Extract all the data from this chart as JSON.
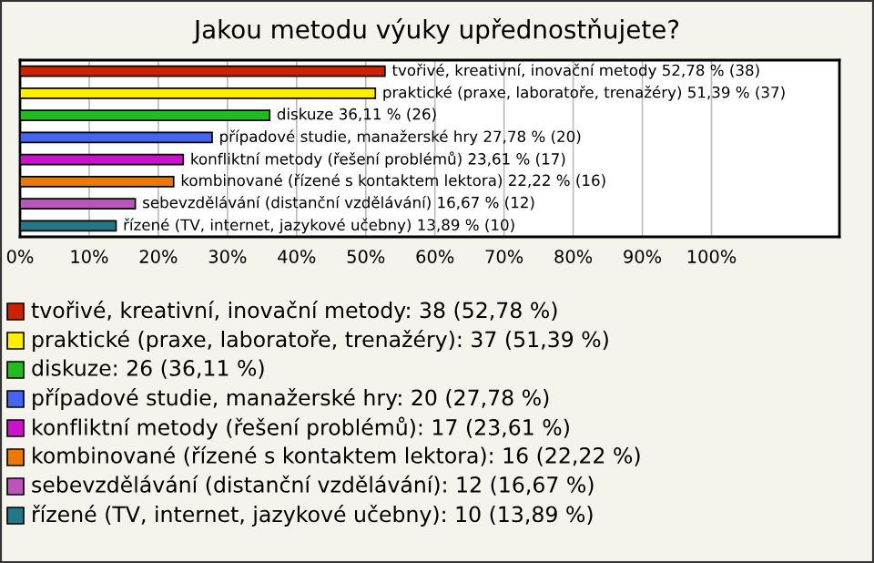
{
  "chart_data": {
    "type": "bar",
    "orientation": "horizontal",
    "title": "Jakou metodu výuky upřednostňujete?",
    "categories": [
      null,
      null,
      null,
      null,
      null,
      null,
      null,
      null
    ],
    "values": [
      52.78,
      51.39,
      36.11,
      27.78,
      23.61,
      22.22,
      16.67,
      13.89
    ],
    "colors": [
      "#cc2200",
      "#ffee00",
      "#22bb22",
      "#4466ee",
      "#cc11cc",
      "#ee7700",
      "#bb55bb",
      "#227788"
    ],
    "value_labels": [
      "tvořivé, kreativní, inovační metody 52,78 % (38)",
      "praktické (praxe, laboratoře, trenažéry) 51,39 % (37)",
      "diskuze 36,11 % (26)",
      "případové studie, manažerské hry 27,78 % (20)",
      "konfliktní metody (řešení problémů) 23,61 % (17)",
      "kombinované (řízené s kontaktem lektora) 22,22 % (16)",
      "sebevzdělávání (distanční vzdělávání) 16,67 % (12)",
      "řízené (TV, internet, jazykové učebny) 13,89 % (10)"
    ],
    "xlim": [
      0,
      118.5
    ],
    "xticks": [
      {
        "value": 0,
        "label": "0%"
      },
      {
        "value": 10,
        "label": "10%"
      },
      {
        "value": 20,
        "label": "20%"
      },
      {
        "value": 30,
        "label": "30%"
      },
      {
        "value": 40,
        "label": "40%"
      },
      {
        "value": 50,
        "label": "50%"
      },
      {
        "value": 60,
        "label": "60%"
      },
      {
        "value": 70,
        "label": "70%"
      },
      {
        "value": 80,
        "label": "80%"
      },
      {
        "value": 90,
        "label": "90%"
      },
      {
        "value": 100,
        "label": "100%"
      }
    ],
    "grid": "x",
    "annotations": [
      "tvořivé, kreativní, inovační metody: 38 (52,78 %)",
      "praktické (praxe, laboratoře, trenažéry): 37 (51,39 %)",
      "diskuze: 26 (36,11 %)",
      "případové studie, manažerské hry: 20 (27,78 %)",
      "konfliktní metody (řešení problémů): 17 (23,61 %)",
      "kombinované (řízené s kontaktem lektora): 16 (22,22 %)",
      "sebevzdělávání (distanční vzdělávání): 12 (16,67 %)",
      "řízené (TV, internet, jazykové učebny): 10 (13,89 %)"
    ]
  }
}
